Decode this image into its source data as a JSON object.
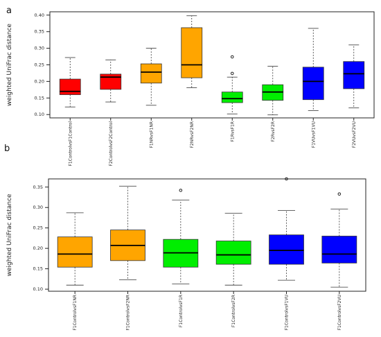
{
  "panels": {
    "a": "a",
    "b": "b"
  },
  "chart_data": [
    {
      "type": "box",
      "panel": "a",
      "ylabel": "weighted UniFrac distance",
      "xlabel": "",
      "ylim": [
        0.09,
        0.41
      ],
      "yticks": [
        0.1,
        0.15,
        0.2,
        0.25,
        0.3,
        0.35,
        0.4
      ],
      "ytick_labels": [
        "0.10",
        "0.15",
        "0.20",
        "0.25",
        "0.30",
        "0.35",
        "0.40"
      ],
      "grid": false,
      "categories": [
        "F1ControlvsF1Control",
        "F2ControlvsF2Control",
        "F1NRvsF1NR",
        "F2NRvsF2NR",
        "F1RvsF1R",
        "F2RvsF2R",
        "F1VUvsF1VU",
        "F2VUvsF2VU"
      ],
      "boxes": [
        {
          "color": "#ff0000",
          "whislo": 0.123,
          "q1": 0.16,
          "median": 0.17,
          "q3": 0.207,
          "whishi": 0.272,
          "fliers": []
        },
        {
          "color": "#ff0000",
          "whislo": 0.138,
          "q1": 0.176,
          "median": 0.213,
          "q3": 0.222,
          "whishi": 0.265,
          "fliers": []
        },
        {
          "color": "#ffa500",
          "whislo": 0.128,
          "q1": 0.195,
          "median": 0.228,
          "q3": 0.253,
          "whishi": 0.3,
          "fliers": []
        },
        {
          "color": "#ffa500",
          "whislo": 0.181,
          "q1": 0.211,
          "median": 0.25,
          "q3": 0.362,
          "whishi": 0.398,
          "fliers": []
        },
        {
          "color": "#00ee00",
          "whislo": 0.102,
          "q1": 0.136,
          "median": 0.148,
          "q3": 0.168,
          "whishi": 0.213,
          "fliers": [
            0.224,
            0.274
          ]
        },
        {
          "color": "#00ee00",
          "whislo": 0.099,
          "q1": 0.143,
          "median": 0.168,
          "q3": 0.19,
          "whishi": 0.246,
          "fliers": []
        },
        {
          "color": "#0000ff",
          "whislo": 0.112,
          "q1": 0.145,
          "median": 0.2,
          "q3": 0.243,
          "whishi": 0.36,
          "fliers": []
        },
        {
          "color": "#0000ff",
          "whislo": 0.12,
          "q1": 0.178,
          "median": 0.223,
          "q3": 0.26,
          "whishi": 0.31,
          "fliers": []
        }
      ]
    },
    {
      "type": "box",
      "panel": "b",
      "ylabel": "weighted UniFrac distance",
      "xlabel": "",
      "ylim": [
        0.095,
        0.37
      ],
      "yticks": [
        0.1,
        0.15,
        0.2,
        0.25,
        0.3,
        0.35
      ],
      "ytick_labels": [
        "0.10",
        "0.15",
        "0.20",
        "0.25",
        "0.30",
        "0.35"
      ],
      "grid": false,
      "categories": [
        "F1ControlvsF1NR",
        "F1ControlvsF2NR",
        "F1ControlvsF1R",
        "F1ControlvsF2R",
        "F1ControlvsF1VU",
        "F1ControlvsF2VU"
      ],
      "boxes": [
        {
          "color": "#ffa500",
          "whislo": 0.11,
          "q1": 0.154,
          "median": 0.186,
          "q3": 0.228,
          "whishi": 0.287,
          "fliers": []
        },
        {
          "color": "#ffa500",
          "whislo": 0.123,
          "q1": 0.17,
          "median": 0.207,
          "q3": 0.245,
          "whishi": 0.352,
          "fliers": []
        },
        {
          "color": "#00ee00",
          "whislo": 0.113,
          "q1": 0.154,
          "median": 0.189,
          "q3": 0.222,
          "whishi": 0.318,
          "fliers": [
            0.342
          ]
        },
        {
          "color": "#00ee00",
          "whislo": 0.11,
          "q1": 0.161,
          "median": 0.184,
          "q3": 0.218,
          "whishi": 0.286,
          "fliers": []
        },
        {
          "color": "#0000ff",
          "whislo": 0.122,
          "q1": 0.161,
          "median": 0.195,
          "q3": 0.233,
          "whishi": 0.293,
          "fliers": [
            0.37
          ]
        },
        {
          "color": "#0000ff",
          "whislo": 0.105,
          "q1": 0.164,
          "median": 0.186,
          "q3": 0.23,
          "whishi": 0.296,
          "fliers": [
            0.333
          ]
        }
      ]
    }
  ]
}
